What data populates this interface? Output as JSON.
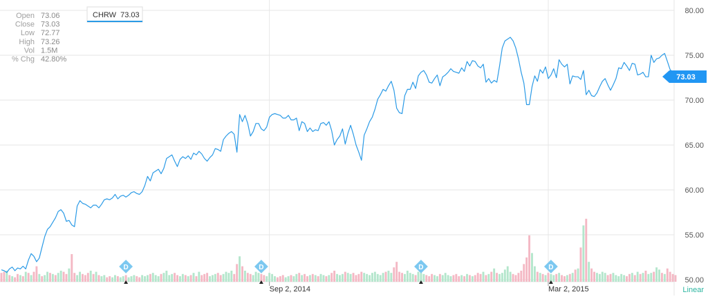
{
  "info_panel": [
    {
      "label": "Open",
      "value": "73.06"
    },
    {
      "label": "Close",
      "value": "73.03"
    },
    {
      "label": "Low",
      "value": "72.77"
    },
    {
      "label": "High",
      "value": "73.26"
    },
    {
      "label": "Vol",
      "value": "1.5M"
    },
    {
      "label": "% Chg",
      "value": "42.80%"
    }
  ],
  "legend": {
    "symbol": "CHRW",
    "last": "73.03"
  },
  "last_price_tag": "73.03",
  "scale_toggle": "Linear",
  "dividend_marker": "D",
  "colors": {
    "line": "#2a9ae6",
    "volume_up": "#b4e6cc",
    "volume_down": "#f4b8c4",
    "grid": "#e6e6e6",
    "tag": "#2196f3",
    "linear": "#2bb5a0"
  },
  "chart_data": {
    "type": "line",
    "title": "",
    "xlabel": "",
    "ylabel": "",
    "ylim": [
      50,
      80
    ],
    "yticks": [
      "80.00",
      "75.00",
      "70.00",
      "65.00",
      "60.00",
      "55.00",
      "50.00"
    ],
    "x_tick_labels": [
      "Sep 2, 2014",
      "Mar 2, 2015"
    ],
    "grid": true,
    "series": [
      {
        "name": "CHRW",
        "values": [
          51.1,
          51.0,
          50.8,
          51.2,
          51.4,
          51.0,
          51.3,
          51.2,
          51.5,
          51.2,
          52.2,
          52.9,
          52.6,
          52.0,
          52.4,
          53.6,
          54.8,
          55.6,
          55.9,
          56.4,
          56.9,
          57.6,
          57.8,
          57.4,
          56.5,
          56.6,
          56.1,
          55.9,
          58.2,
          58.8,
          58.5,
          58.4,
          58.2,
          58.0,
          58.3,
          58.3,
          58.0,
          58.4,
          58.9,
          59.0,
          58.9,
          59.1,
          59.5,
          59.0,
          59.3,
          59.4,
          59.2,
          59.4,
          59.7,
          59.8,
          59.6,
          59.5,
          59.8,
          60.5,
          61.5,
          61.0,
          61.9,
          62.1,
          62.3,
          61.8,
          62.4,
          63.5,
          63.7,
          63.9,
          63.2,
          62.6,
          63.4,
          63.7,
          63.5,
          63.8,
          63.4,
          64.1,
          63.9,
          64.3,
          64.0,
          63.5,
          63.2,
          63.6,
          63.9,
          64.6,
          64.5,
          64.3,
          65.6,
          66.0,
          66.3,
          66.5,
          66.2,
          64.2,
          68.4,
          67.6,
          68.3,
          67.4,
          66.0,
          66.5,
          67.4,
          67.4,
          66.8,
          66.6,
          67.0,
          68.1,
          68.4,
          68.5,
          68.4,
          68.3,
          68.0,
          68.0,
          68.3,
          67.8,
          67.8,
          68.0,
          66.6,
          67.6,
          67.4,
          66.5,
          66.9,
          66.5,
          66.7,
          66.6,
          67.4,
          67.5,
          67.2,
          67.6,
          66.6,
          65.0,
          65.6,
          66.0,
          66.8,
          65.1,
          66.3,
          67.2,
          66.2,
          65.0,
          64.2,
          63.3,
          66.1,
          66.8,
          67.6,
          68.1,
          69.0,
          70.1,
          70.6,
          71.2,
          71.0,
          71.6,
          72.1,
          71.1,
          69.1,
          68.6,
          68.5,
          70.5,
          71.2,
          71.2,
          72.0,
          71.3,
          72.7,
          73.1,
          73.3,
          72.8,
          72.0,
          71.9,
          72.4,
          72.8,
          71.6,
          72.6,
          72.8,
          73.1,
          73.5,
          73.2,
          73.1,
          73.0,
          73.6,
          73.2,
          74.3,
          73.8,
          74.4,
          74.3,
          73.8,
          73.6,
          74.0,
          72.0,
          72.4,
          71.9,
          72.2,
          72.0,
          73.8,
          75.8,
          76.6,
          76.8,
          77.0,
          76.6,
          75.8,
          74.6,
          73.1,
          71.9,
          69.5,
          69.5,
          71.5,
          72.7,
          72.1,
          73.4,
          73.0,
          73.7,
          72.4,
          72.8,
          73.5,
          72.5,
          74.5,
          74.0,
          73.7,
          74.0,
          71.8,
          72.7,
          72.6,
          72.6,
          72.3,
          73.3,
          70.6,
          71.1,
          70.5,
          70.4,
          70.8,
          71.5,
          72.1,
          72.4,
          71.7,
          71.1,
          71.7,
          72.4,
          73.6,
          73.5,
          74.2,
          73.8,
          73.3,
          74.1,
          74.0,
          72.8,
          72.9,
          73.1,
          72.6,
          72.6,
          75.0,
          74.2,
          74.6,
          74.7,
          75.0,
          75.2,
          74.3,
          73.4,
          73.1,
          73.03
        ]
      },
      {
        "name": "Volume",
        "values": [
          0.8,
          0.9,
          1.0,
          0.6,
          0.5,
          0.4,
          0.7,
          0.6,
          0.5,
          0.9,
          0.8,
          0.6,
          0.9,
          1.4,
          0.7,
          0.5,
          0.6,
          0.9,
          0.8,
          0.7,
          0.6,
          0.8,
          1.0,
          0.9,
          0.7,
          1.2,
          2.5,
          0.8,
          0.6,
          0.9,
          0.7,
          0.6,
          0.8,
          1.0,
          0.7,
          0.9,
          0.6,
          0.5,
          0.6,
          0.4,
          0.5,
          0.4,
          0.6,
          0.5,
          0.4,
          0.5,
          0.6,
          0.4,
          0.5,
          0.6,
          0.5,
          0.4,
          0.6,
          0.5,
          0.6,
          0.7,
          0.8,
          0.6,
          0.5,
          0.7,
          0.8,
          1.0,
          0.6,
          0.7,
          0.8,
          0.6,
          0.5,
          0.7,
          0.6,
          0.5,
          0.6,
          0.8,
          0.5,
          0.9,
          0.6,
          0.7,
          0.8,
          0.5,
          0.6,
          0.7,
          0.8,
          0.6,
          0.7,
          0.9,
          0.8,
          1.0,
          0.7,
          1.6,
          2.3,
          1.4,
          1.0,
          0.8,
          0.7,
          0.6,
          0.9,
          0.8,
          0.7,
          0.6,
          0.5,
          0.8,
          0.7,
          0.5,
          0.4,
          0.5,
          0.6,
          0.4,
          0.5,
          0.6,
          0.5,
          0.7,
          0.8,
          0.6,
          0.7,
          0.5,
          0.6,
          0.7,
          0.6,
          0.5,
          0.7,
          0.6,
          0.5,
          0.6,
          0.8,
          1.0,
          0.7,
          0.6,
          0.7,
          0.9,
          0.8,
          0.7,
          0.8,
          0.6,
          0.7,
          0.9,
          0.8,
          0.7,
          0.6,
          0.8,
          0.9,
          0.7,
          0.6,
          0.8,
          0.9,
          1.0,
          0.8,
          1.3,
          1.8,
          0.9,
          0.8,
          0.7,
          1.0,
          0.8,
          0.7,
          0.6,
          0.9,
          0.8,
          0.7,
          0.6,
          0.5,
          0.7,
          0.6,
          0.5,
          0.7,
          0.6,
          0.8,
          0.6,
          0.5,
          0.6,
          0.7,
          0.5,
          0.6,
          0.5,
          0.7,
          0.6,
          0.5,
          0.6,
          0.8,
          0.7,
          0.9,
          0.6,
          0.7,
          0.9,
          1.2,
          0.8,
          0.7,
          0.8,
          1.1,
          1.4,
          0.9,
          0.7,
          0.6,
          0.8,
          1.0,
          1.6,
          2.2,
          4.2,
          2.6,
          1.4,
          0.9,
          0.8,
          0.7,
          0.6,
          0.8,
          0.7,
          0.6,
          0.7,
          0.8,
          0.6,
          0.5,
          0.6,
          0.7,
          0.8,
          1.1,
          1.2,
          3.1,
          5.1,
          5.7,
          1.8,
          1.2,
          0.9,
          0.8,
          0.7,
          0.9,
          0.8,
          0.6,
          0.7,
          0.8,
          0.6,
          0.5,
          0.7,
          0.6,
          0.5,
          0.7,
          0.8,
          0.6,
          0.9,
          0.7,
          0.8,
          1.0,
          0.7,
          0.8,
          0.9,
          1.3,
          1.1,
          0.8,
          0.7,
          1.2,
          0.9,
          0.7,
          0.6
        ]
      }
    ],
    "volume_down_flags": [
      1,
      1,
      0,
      1,
      0,
      1,
      1,
      0,
      1,
      0,
      1,
      0,
      1,
      1,
      0,
      1,
      0,
      0,
      1,
      0,
      1,
      0,
      0,
      1,
      1,
      0,
      1,
      1,
      0,
      0,
      1,
      1,
      1,
      0,
      1,
      0,
      1,
      0,
      0,
      1,
      1,
      0,
      0,
      1,
      0,
      0,
      1,
      0,
      0,
      0,
      1,
      1,
      0,
      0,
      0,
      1,
      0,
      0,
      0,
      1,
      0,
      0,
      0,
      0,
      1,
      1,
      0,
      0,
      1,
      0,
      1,
      0,
      1,
      0,
      1,
      1,
      1,
      0,
      0,
      0,
      1,
      1,
      0,
      0,
      0,
      0,
      1,
      1,
      0,
      1,
      0,
      1,
      1,
      0,
      0,
      0,
      1,
      1,
      0,
      0,
      0,
      0,
      1,
      1,
      1,
      0,
      0,
      1,
      0,
      0,
      1,
      0,
      1,
      1,
      0,
      1,
      0,
      1,
      0,
      0,
      1,
      0,
      1,
      1,
      0,
      0,
      0,
      1,
      0,
      0,
      1,
      1,
      1,
      1,
      0,
      0,
      0,
      0,
      0,
      0,
      0,
      0,
      1,
      0,
      0,
      1,
      1,
      1,
      1,
      0,
      0,
      0,
      0,
      1,
      0,
      0,
      0,
      1,
      1,
      1,
      0,
      0,
      1,
      0,
      0,
      0,
      0,
      1,
      1,
      1,
      0,
      1,
      0,
      1,
      0,
      1,
      1,
      1,
      0,
      1,
      0,
      1,
      0,
      1,
      0,
      0,
      0,
      0,
      0,
      1,
      1,
      1,
      1,
      1,
      1,
      1,
      0,
      0,
      1,
      0,
      1,
      0,
      1,
      0,
      0,
      1,
      0,
      1,
      1,
      0,
      1,
      0,
      1,
      0,
      1,
      0,
      1,
      0,
      1,
      1,
      0,
      0,
      0,
      0,
      1,
      1,
      0,
      0,
      0,
      0,
      0,
      1,
      1,
      0,
      1,
      0,
      1,
      0,
      1,
      0,
      0,
      1,
      0,
      0,
      1,
      0,
      1,
      1,
      1,
      1
    ],
    "dividend_indices": [
      46,
      96,
      155,
      203
    ],
    "x_tick_indices": [
      99,
      202
    ]
  }
}
